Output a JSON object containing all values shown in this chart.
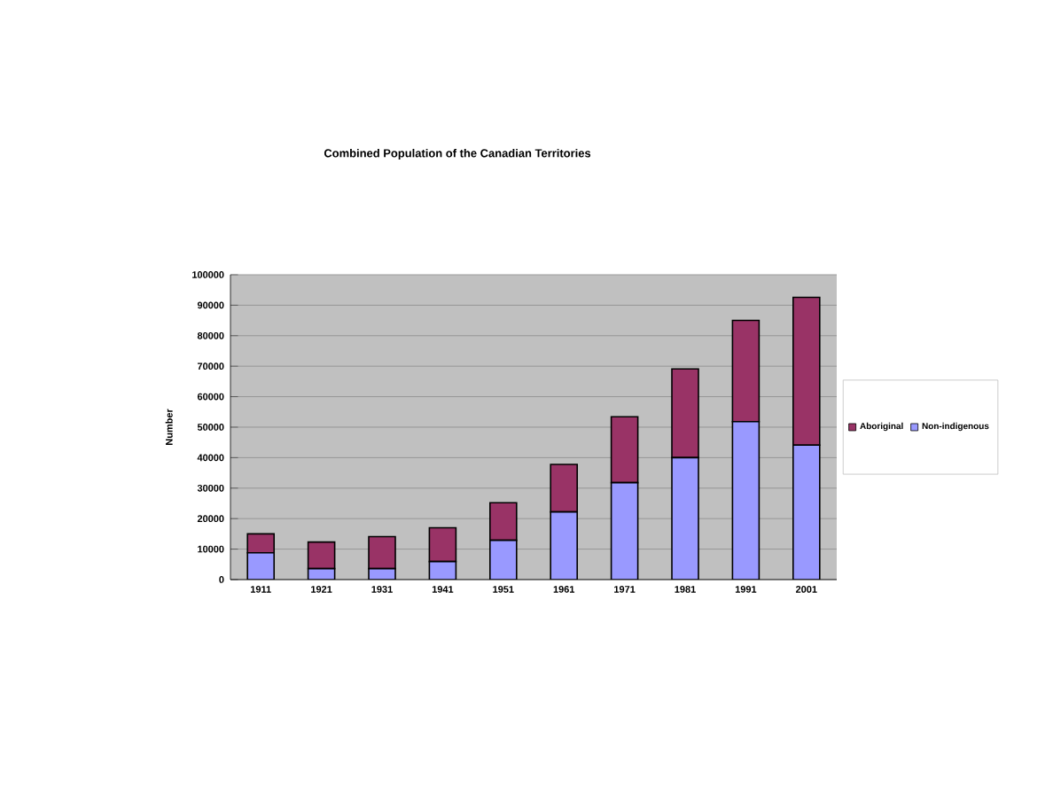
{
  "chart_data": {
    "type": "bar",
    "title": "Combined Population of the Canadian Territories",
    "ylabel": "Number",
    "categories": [
      "1911",
      "1921",
      "1931",
      "1941",
      "1951",
      "1961",
      "1971",
      "1981",
      "1991",
      "2001"
    ],
    "stacked": true,
    "series": [
      {
        "name": "Non-indigenous",
        "color": "#9999ff",
        "values": [
          8800,
          3600,
          3600,
          5900,
          12900,
          22200,
          31800,
          40000,
          51800,
          44100
        ]
      },
      {
        "name": "Aboriginal",
        "color": "#993366",
        "values": [
          6200,
          8700,
          10500,
          11100,
          12300,
          15600,
          21600,
          29100,
          33200,
          48500
        ]
      }
    ],
    "ylim": [
      0,
      100000
    ],
    "yticks": [
      0,
      10000,
      20000,
      30000,
      40000,
      50000,
      60000,
      70000,
      80000,
      90000,
      100000
    ],
    "grid": "y",
    "legend": "right"
  }
}
